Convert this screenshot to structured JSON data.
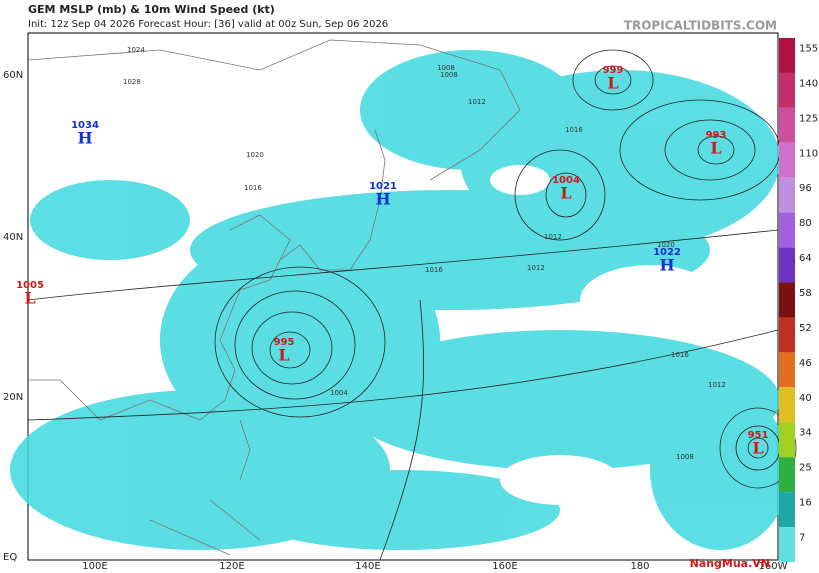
{
  "header": {
    "title": "GEM MSLP (mb) & 10m Wind Speed (kt)",
    "subtitle": "Init: 12z Sep 04 2026   Forecast Hour: [36]   valid at 00z Sun, Sep 06 2026",
    "source": "TROPICALTIDBITS.COM"
  },
  "map": {
    "latitude_labels": [
      "60N",
      "40N",
      "20N",
      "EQ"
    ],
    "longitude_labels": [
      "100E",
      "120E",
      "140E",
      "160E",
      "180",
      "160W"
    ],
    "pressure_centers": [
      {
        "letter": "H",
        "value": "1034"
      },
      {
        "letter": "H",
        "value": "1021"
      },
      {
        "letter": "H",
        "value": "1022"
      },
      {
        "letter": "L",
        "value": "1005"
      },
      {
        "letter": "L",
        "value": "995"
      },
      {
        "letter": "L",
        "value": "999"
      },
      {
        "letter": "L",
        "value": "1004"
      },
      {
        "letter": "L",
        "value": "993"
      },
      {
        "letter": "L",
        "value": "951"
      }
    ],
    "isobar_labels": [
      "1024",
      "1028",
      "1020",
      "1016",
      "1012",
      "1008",
      "1004",
      "1016",
      "1012",
      "1016",
      "1008",
      "1012",
      "1016",
      "1020",
      "1012",
      "1008"
    ]
  },
  "colorbar": {
    "ticks": [
      "155",
      "140",
      "125",
      "110",
      "96",
      "80",
      "64",
      "58",
      "52",
      "46",
      "40",
      "34",
      "25",
      "16",
      "7"
    ],
    "colors": [
      "#b01040",
      "#c0306a",
      "#d050a0",
      "#d070c8",
      "#c090e0",
      "#a060e0",
      "#7030c0",
      "#7a1010",
      "#c03020",
      "#e07020",
      "#e0c020",
      "#a0d020",
      "#30b040",
      "#20a8a8",
      "#60e0e0"
    ]
  },
  "watermark": "NangMua.VN"
}
